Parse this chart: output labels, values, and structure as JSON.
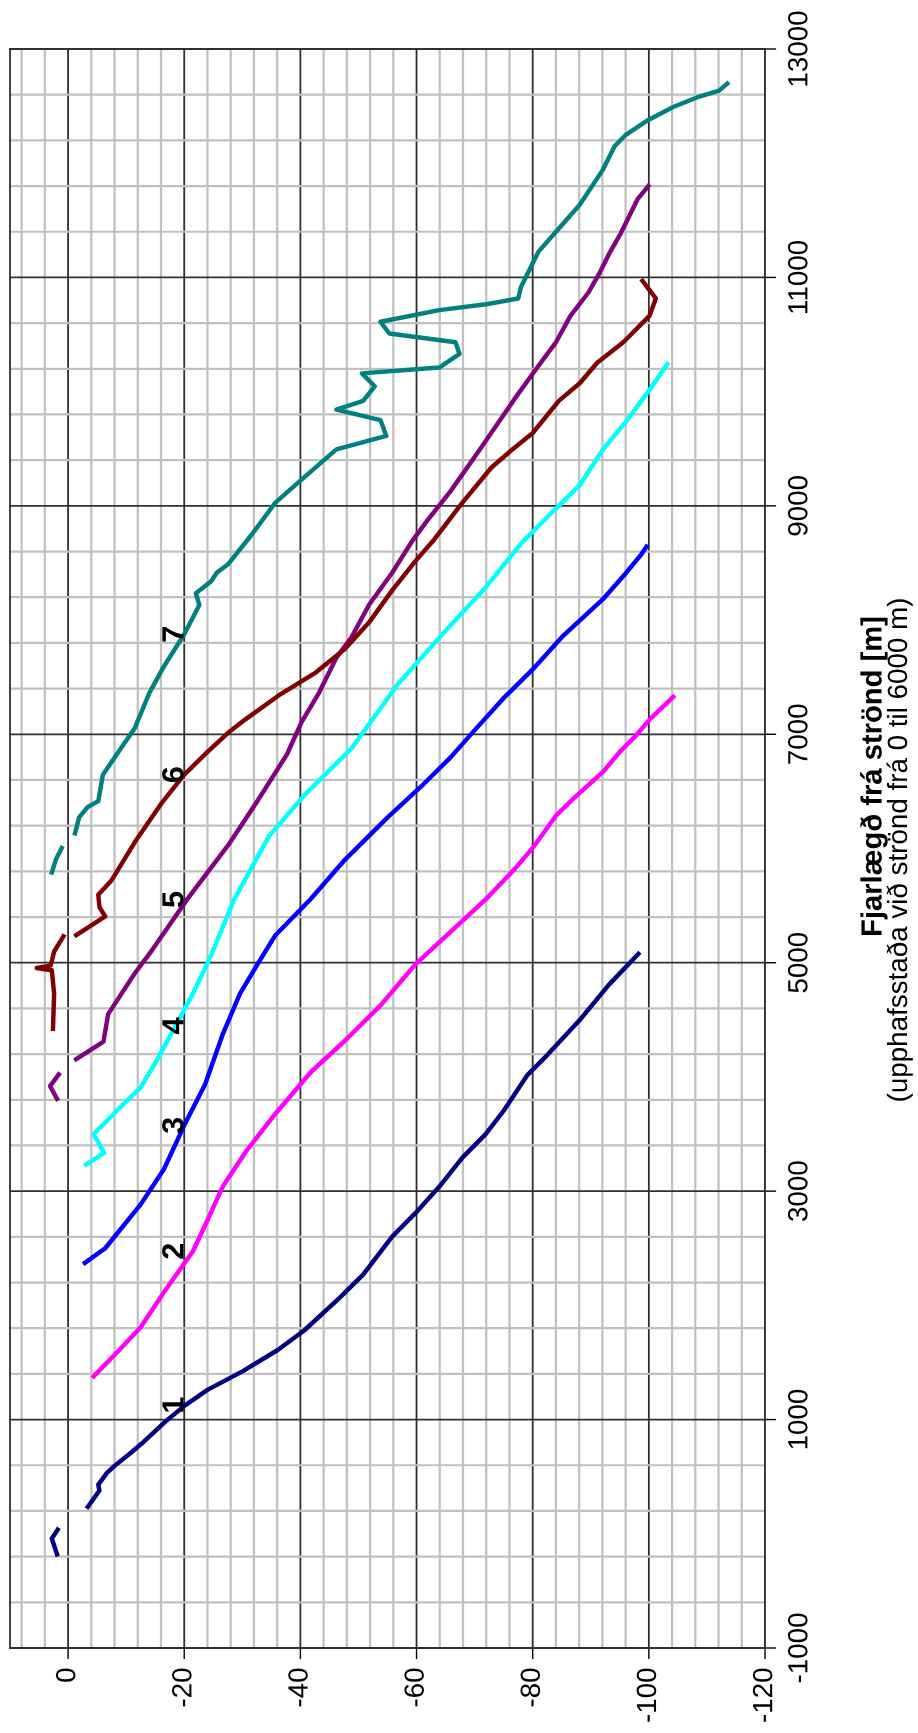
{
  "chart_data": {
    "type": "line",
    "ylabel": "Fjarlægð frá strönd [m]",
    "ylim": [
      -1000,
      13000
    ],
    "yticks": [
      -1000,
      1000,
      3000,
      5000,
      7000,
      9000,
      11000,
      13000
    ],
    "xlim": [
      10,
      -120
    ],
    "xticks": [
      0,
      -20,
      -40,
      -60,
      -80,
      -100,
      -120
    ],
    "grid": true,
    "annotations": [
      "(upphafsstaða við strönd frá 0 til 6000 m)"
    ],
    "series": [
      {
        "name": "1",
        "color": "#000080",
        "values": [
          -180,
          -41,
          36,
          null,
          236,
          379,
          430,
          533,
          599,
          697,
          804,
          984,
          1127,
          1260,
          1424,
          1609,
          1782,
          2064,
          2269,
          2602,
          2807,
          3038,
          3294,
          3499,
          3704,
          4011,
          4191,
          4498,
          4806,
          5078
        ],
        "x": [
          1.9,
          2.8,
          1.8,
          null,
          -3.4,
          -5.4,
          -5.2,
          -6.7,
          -8.1,
          -10.5,
          -13.0,
          -16.8,
          -20.2,
          -24.0,
          -30.1,
          -36.1,
          -40.7,
          -46.7,
          -50.8,
          -55.8,
          -59.8,
          -63.9,
          -67.9,
          -71.9,
          -75.0,
          -79.0,
          -82.5,
          -88.1,
          -93.1,
          -98.2
        ]
      },
      {
        "name": "2",
        "color": "#ff00ff",
        "values": [
          1378,
          1613,
          1808,
          2115,
          2474,
          2756,
          3038,
          3345,
          3678,
          4037,
          4319,
          4626,
          4985,
          5554,
          5826,
          6005,
          6287,
          6441,
          6671,
          6851,
          6979,
          7133,
          7327
        ],
        "x": [
          -4.4,
          -8.9,
          -12.5,
          -16.5,
          -21.5,
          -24.1,
          -26.6,
          -30.6,
          -35.7,
          -41.7,
          -47.7,
          -53.8,
          -59.8,
          -71.9,
          -77.0,
          -80.0,
          -84.0,
          -87.1,
          -92.1,
          -95.1,
          -97.6,
          -100.2,
          -104.2
        ]
      },
      {
        "name": "3",
        "color": "#0000ff",
        "values": [
          2372,
          2500,
          2884,
          3192,
          3576,
          3935,
          4370,
          4729,
          4985,
          5241,
          5554,
          5903,
          6261,
          6543,
          6800,
          7030,
          7312,
          7568,
          7850,
          8183,
          8414,
          8568,
          8644
        ],
        "x": [
          -2.9,
          -6.4,
          -12.5,
          -16.5,
          -20.0,
          -23.6,
          -26.6,
          -29.6,
          -32.6,
          -35.7,
          -41.7,
          -47.7,
          -54.8,
          -60.8,
          -65.9,
          -69.9,
          -74.9,
          -80.0,
          -85.0,
          -92.1,
          -96.1,
          -98.6,
          -99.6
        ]
      },
      {
        "name": "4",
        "color": "#00ffff",
        "values": [
          3232,
          3335,
          3499,
          3704,
          3909,
          4165,
          4447,
          4729,
          5062,
          5554,
          6108,
          6467,
          6876,
          7440,
          7901,
          8286,
          8670,
          8926,
          9182,
          9494,
          9740,
          10022,
          10242
        ],
        "x": [
          -3.1,
          -6.2,
          -4.4,
          -8.4,
          -12.5,
          -15.5,
          -18.5,
          -21.5,
          -24.6,
          -28.6,
          -34.6,
          -40.7,
          -48.8,
          -56.8,
          -64.9,
          -71.9,
          -78.0,
          -83.0,
          -88.1,
          -92.1,
          -96.1,
          -100.2,
          -103.2
        ]
      },
      {
        "name": "5",
        "color": "#800080",
        "values": [
          3807,
          3919,
          4022,
          null,
          4155,
          4309,
          4550,
          4908,
          5113,
          5554,
          6031,
          6415,
          6825,
          7107,
          7363,
          7671,
          7850,
          8132,
          8414,
          8696,
          8875,
          9131,
          9494,
          9945,
          10227,
          10432,
          10663,
          10868,
          11047,
          11201,
          11380,
          11688,
          11800
        ],
        "x": [
          1.9,
          3.1,
          1.6,
          null,
          -1.4,
          -6.1,
          -6.9,
          -11.5,
          -14.5,
          -20.5,
          -27.6,
          -32.6,
          -37.7,
          -40.2,
          -43.2,
          -46.2,
          -48.8,
          -51.8,
          -55.8,
          -59.3,
          -61.9,
          -65.9,
          -70.9,
          -77.0,
          -81.0,
          -84.0,
          -86.5,
          -89.6,
          -91.6,
          -93.1,
          -95.1,
          -98.1,
          -99.9
        ]
      },
      {
        "name": "6",
        "color": "#800000",
        "values": [
          4422,
          4729,
          4934,
          4954,
          4975,
          5098,
          5231,
          null,
          5241,
          5405,
          5487,
          5595,
          5723,
          6056,
          6390,
          6646,
          6851,
          7015,
          7133,
          7338,
          7543,
          7748,
          7978,
          8260,
          8516,
          8696,
          9029,
          9336,
          9494,
          9638,
          9919,
          10073,
          10253,
          10432,
          10560,
          10663,
          10816,
          10970
        ],
        "x": [
          2.6,
          2.4,
          2.8,
          5.4,
          3.0,
          2.4,
          0.8,
          null,
          -1.4,
          -6.4,
          -5.4,
          -5.2,
          -7.5,
          -11.5,
          -16.0,
          -20.0,
          -24.1,
          -27.6,
          -30.6,
          -36.2,
          -42.7,
          -47.7,
          -51.8,
          -55.8,
          -59.8,
          -62.9,
          -67.9,
          -72.9,
          -76.5,
          -80.0,
          -84.5,
          -88.1,
          -91.1,
          -95.6,
          -98.1,
          -100.1,
          -101.2,
          -98.9
        ]
      },
      {
        "name": "7",
        "color": "#008080",
        "values": [
          5790,
          5903,
          6005,
          null,
          6133,
          6272,
          6364,
          6415,
          6646,
          6825,
          7056,
          7363,
          7594,
          7876,
          8132,
          8234,
          8337,
          8414,
          8491,
          8747,
          9029,
          9208,
          9494,
          9612,
          9750,
          9843,
          9919,
          10047,
          10160,
          10211,
          10330,
          10432,
          10509,
          10612,
          10714,
          10765,
          10816,
          10919,
          11226,
          11457,
          11636,
          11944,
          12149,
          12251,
          12379,
          12492,
          12584,
          12636,
          12697
        ],
        "x": [
          2.8,
          2.1,
          1.1,
          null,
          -1.2,
          -1.9,
          -3.4,
          -5.2,
          -6.0,
          -8.4,
          -11.5,
          -14.0,
          -16.5,
          -20.0,
          -22.6,
          -22.0,
          -24.6,
          -25.6,
          -27.6,
          -31.6,
          -35.7,
          -39.7,
          -46.2,
          -54.8,
          -53.8,
          -46.2,
          -50.8,
          -52.8,
          -50.6,
          -63.9,
          -67.4,
          -66.7,
          -55.3,
          -53.8,
          -63.9,
          -72.0,
          -77.5,
          -78.0,
          -81.0,
          -85.0,
          -88.1,
          -92.1,
          -94.1,
          -96.1,
          -99.9,
          -104.2,
          -108.7,
          -112.1,
          -113.5
        ]
      }
    ]
  }
}
